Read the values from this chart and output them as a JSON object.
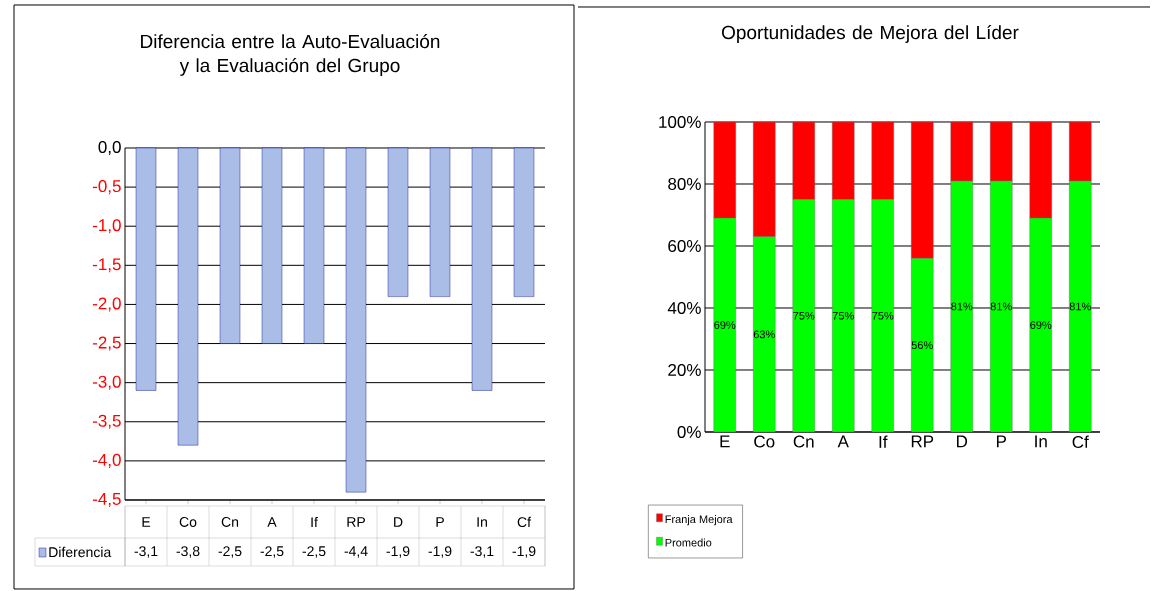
{
  "chart_data": [
    {
      "type": "bar",
      "title": "Diferencia entre la Auto-Evaluación y la Evaluación del Grupo",
      "categories": [
        "E",
        "Co",
        "Cn",
        "A",
        "If",
        "RP",
        "D",
        "P",
        "In",
        "Cf"
      ],
      "series": [
        {
          "name": "Diferencia",
          "color": "#a9bde6",
          "values": [
            -3.1,
            -3.8,
            -2.5,
            -2.5,
            -2.5,
            -4.4,
            -1.9,
            -1.9,
            -3.1,
            -1.9
          ],
          "value_labels": [
            "-3,1",
            "-3,8",
            "-2,5",
            "-2,5",
            "-2,5",
            "-4,4",
            "-1,9",
            "-1,9",
            "-3,1",
            "-1,9"
          ]
        }
      ],
      "ylim": [
        -4.5,
        0
      ],
      "yticks": [
        {
          "value": 0,
          "label": "0,0"
        },
        {
          "value": -0.5,
          "label": "-0,5"
        },
        {
          "value": -1,
          "label": "-1,0"
        },
        {
          "value": -1.5,
          "label": "-1,5"
        },
        {
          "value": -2,
          "label": "-2,0"
        },
        {
          "value": -2.5,
          "label": "-2,5"
        },
        {
          "value": -3,
          "label": "-3,0"
        },
        {
          "value": -3.5,
          "label": "-3,5"
        },
        {
          "value": -4,
          "label": "-4,0"
        },
        {
          "value": -4.5,
          "label": "-4,5"
        }
      ],
      "grid": "y",
      "legend": "bottom"
    },
    {
      "type": "bar",
      "title": "Oportunidades de Mejora del Líder",
      "stacked": true,
      "categories": [
        "E",
        "Co",
        "Cn",
        "A",
        "If",
        "RP",
        "D",
        "P",
        "In",
        "Cf"
      ],
      "series": [
        {
          "name": "Promedio",
          "color": "#00ff00",
          "values": [
            69,
            63,
            75,
            75,
            75,
            56,
            81,
            81,
            69,
            81
          ],
          "value_labels": [
            "69%",
            "63%",
            "75%",
            "75%",
            "75%",
            "56%",
            "81%",
            "81%",
            "69%",
            "81%"
          ]
        },
        {
          "name": "Franja Mejora",
          "color": "#ff0000",
          "values": [
            31,
            37,
            25,
            25,
            25,
            44,
            19,
            19,
            31,
            19
          ]
        }
      ],
      "ylim": [
        0,
        100
      ],
      "yticks": [
        {
          "value": 0,
          "label": "0%"
        },
        {
          "value": 20,
          "label": "20%"
        },
        {
          "value": 40,
          "label": "40%"
        },
        {
          "value": 60,
          "label": "60%"
        },
        {
          "value": 80,
          "label": "80%"
        },
        {
          "value": 100,
          "label": "100%"
        }
      ],
      "grid": "y",
      "legend": "bottom left"
    }
  ]
}
